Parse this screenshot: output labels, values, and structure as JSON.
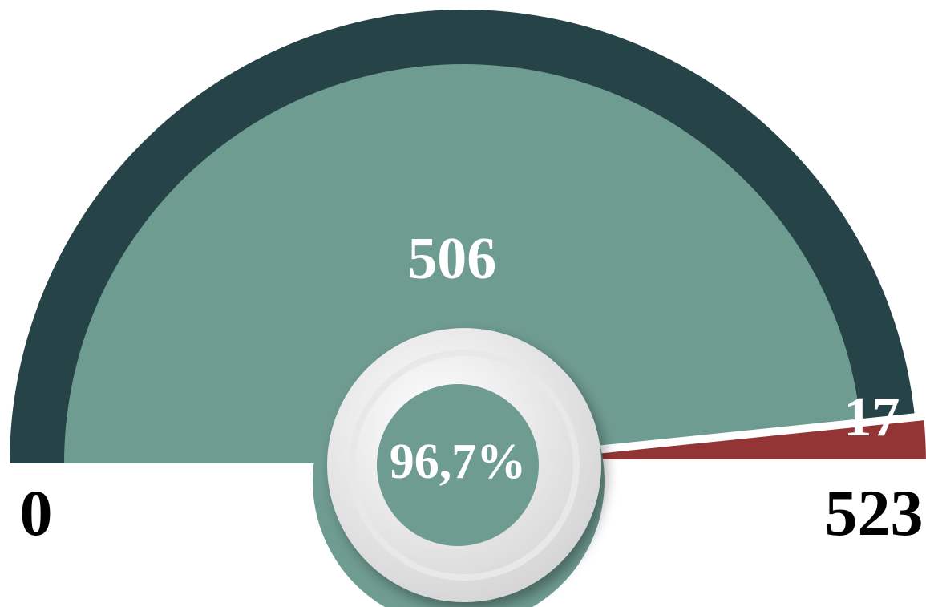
{
  "chart_data": {
    "type": "gauge",
    "range": [
      0,
      523
    ],
    "values": [
      506,
      17
    ],
    "colors": [
      "#6f9c91",
      "#933535"
    ],
    "track_color": "#264447",
    "center": {
      "value": 96.7,
      "label": "96,7%"
    }
  }
}
